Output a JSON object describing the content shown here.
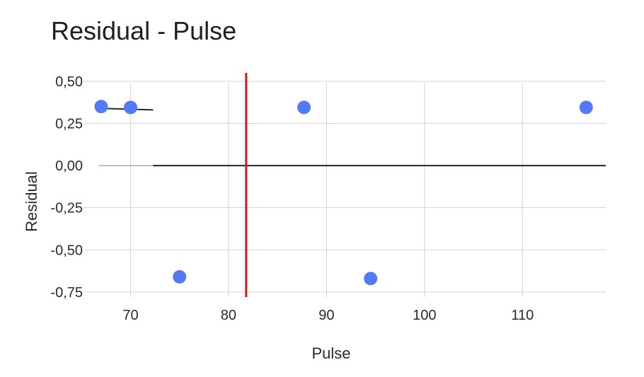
{
  "chart_data": {
    "type": "scatter",
    "title": "Residual - Pulse",
    "xlabel": "Pulse",
    "ylabel": "Residual",
    "xlim": [
      65.2,
      118.5
    ],
    "ylim": [
      -0.78,
      0.55
    ],
    "x_ticks": [
      70,
      80,
      90,
      100,
      110
    ],
    "x_tick_labels": [
      "70",
      "80",
      "90",
      "100",
      "110"
    ],
    "y_ticks": [
      0.5,
      0.25,
      0.0,
      -0.25,
      -0.5,
      -0.75
    ],
    "y_tick_labels": [
      "0,50",
      "0,25",
      "0,00",
      "-0,25",
      "-0,50",
      "-0,75"
    ],
    "grid": true,
    "legend": "none",
    "points": [
      {
        "x": 67,
        "y": 0.35
      },
      {
        "x": 70,
        "y": 0.345
      },
      {
        "x": 75,
        "y": -0.66
      },
      {
        "x": 87.7,
        "y": 0.345
      },
      {
        "x": 94.5,
        "y": -0.67
      },
      {
        "x": 116.5,
        "y": 0.345
      }
    ],
    "zero_line": {
      "y": 0.0
    },
    "vertical_line": {
      "x": 81.8
    },
    "short_line": {
      "x": [
        66.5,
        72.3
      ],
      "y": [
        0.34,
        0.33
      ]
    },
    "colors": {
      "point": "#5479f2",
      "vertical_line": "#e01515",
      "zero_line": "#1f2630",
      "grid": "#d3d3d7"
    }
  }
}
